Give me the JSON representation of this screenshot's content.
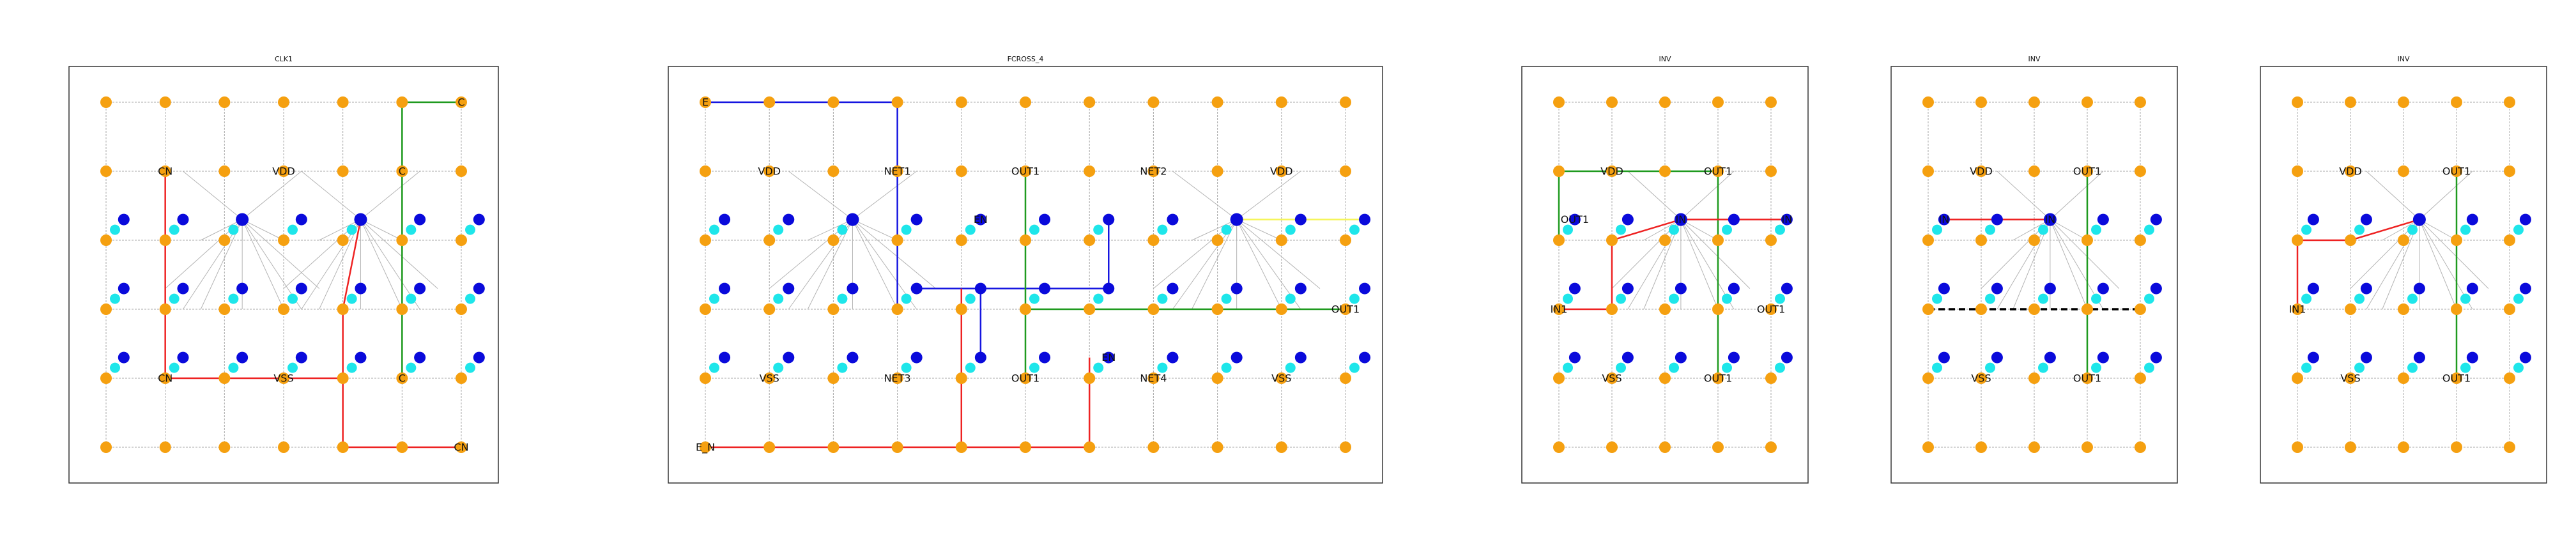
{
  "colors": {
    "grid_node": "#f5a010",
    "pin": "#0a0adb",
    "pin_shadow": "#1ee6ea",
    "red_route": "#ee2222",
    "green_route": "#1f9a1f",
    "blue_route": "#1515e0",
    "yellow_route": "#f5f55a",
    "black_route": "#000000"
  },
  "panels": [
    {
      "title": "CLK1",
      "cols": 7,
      "rows": 6,
      "labels": [
        {
          "c": 6,
          "r": 0,
          "text": "C"
        },
        {
          "c": 1,
          "r": 1,
          "text": "CN"
        },
        {
          "c": 3,
          "r": 1,
          "text": "VDD"
        },
        {
          "c": 5,
          "r": 1,
          "text": "C"
        },
        {
          "c": 1,
          "r": 4,
          "text": "CN"
        },
        {
          "c": 3,
          "r": 4,
          "text": "VSS"
        },
        {
          "c": 5,
          "r": 4,
          "text": "C"
        },
        {
          "c": 6,
          "r": 5,
          "text": "CN"
        }
      ],
      "hubs": [
        {
          "c": 2.3,
          "r": 1.7
        },
        {
          "c": 4.3,
          "r": 1.7
        }
      ],
      "routes": [
        {
          "color": "green",
          "pts": [
            [
              6,
              0
            ],
            [
              5,
              0
            ],
            [
              5,
              4
            ]
          ]
        },
        {
          "color": "red",
          "pts": [
            [
              1,
              1
            ],
            [
              1,
              4
            ],
            [
              4,
              4
            ],
            [
              4,
              5
            ],
            [
              6,
              5
            ]
          ]
        },
        {
          "color": "red",
          "pts": [
            [
              4.3,
              1.7
            ],
            [
              4,
              3
            ],
            [
              4,
              4
            ]
          ]
        }
      ]
    },
    {
      "title": "FCROSS_4",
      "cols": 11,
      "rows": 6,
      "labels": [
        {
          "c": 0,
          "r": 0,
          "text": "E"
        },
        {
          "c": 1,
          "r": 1,
          "text": "VDD"
        },
        {
          "c": 3,
          "r": 1,
          "text": "NET1"
        },
        {
          "c": 5,
          "r": 1,
          "text": "OUT1"
        },
        {
          "c": 7,
          "r": 1,
          "text": "NET2"
        },
        {
          "c": 9,
          "r": 1,
          "text": "VDD"
        },
        {
          "c": 4.3,
          "r": 1.7,
          "text": "EN"
        },
        {
          "c": 10,
          "r": 3,
          "text": "OUT1"
        },
        {
          "c": 1,
          "r": 4,
          "text": "VSS"
        },
        {
          "c": 3,
          "r": 4,
          "text": "NET3"
        },
        {
          "c": 5,
          "r": 4,
          "text": "OUT1"
        },
        {
          "c": 6.3,
          "r": 3.7,
          "text": "EN"
        },
        {
          "c": 7,
          "r": 4,
          "text": "NET4"
        },
        {
          "c": 9,
          "r": 4,
          "text": "VSS"
        },
        {
          "c": 0,
          "r": 5,
          "text": "E_N"
        }
      ],
      "hubs": [
        {
          "c": 2.3,
          "r": 1.7
        },
        {
          "c": 8.3,
          "r": 1.7
        }
      ],
      "routes": [
        {
          "color": "blue",
          "pts": [
            [
              0,
              0
            ],
            [
              3,
              0
            ],
            [
              3,
              3
            ]
          ]
        },
        {
          "color": "blue",
          "pts": [
            [
              3.3,
              2.7
            ],
            [
              6.3,
              2.7
            ],
            [
              6.3,
              1.7
            ]
          ]
        },
        {
          "color": "blue",
          "pts": [
            [
              4.3,
              2.7
            ],
            [
              4.3,
              3.7
            ]
          ]
        },
        {
          "color": "green",
          "pts": [
            [
              5,
              1
            ],
            [
              5,
              4
            ]
          ]
        },
        {
          "color": "green",
          "pts": [
            [
              5,
              3
            ],
            [
              10,
              3
            ]
          ]
        },
        {
          "color": "red",
          "pts": [
            [
              0,
              5
            ],
            [
              4,
              5
            ],
            [
              4,
              2.7
            ]
          ]
        },
        {
          "color": "red",
          "pts": [
            [
              4,
              5
            ],
            [
              6,
              5
            ],
            [
              6,
              3.7
            ]
          ]
        },
        {
          "color": "yellow",
          "pts": [
            [
              8.3,
              1.7
            ],
            [
              10.3,
              1.7
            ]
          ]
        }
      ]
    },
    {
      "title": "INV",
      "cols": 5,
      "rows": 6,
      "labels": [
        {
          "c": 1,
          "r": 1,
          "text": "VDD"
        },
        {
          "c": 3,
          "r": 1,
          "text": "OUT1"
        },
        {
          "c": 0.3,
          "r": 1.7,
          "text": "OUT1"
        },
        {
          "c": 2.3,
          "r": 1.7,
          "text": "IN"
        },
        {
          "c": 4.3,
          "r": 1.7,
          "text": "IN"
        },
        {
          "c": 0,
          "r": 3,
          "text": "IN1"
        },
        {
          "c": 4,
          "r": 3,
          "text": "OUT1"
        },
        {
          "c": 1,
          "r": 4,
          "text": "VSS"
        },
        {
          "c": 3,
          "r": 4,
          "text": "OUT1"
        }
      ],
      "hubs": [
        {
          "c": 2.3,
          "r": 1.7
        }
      ],
      "routes": [
        {
          "color": "green",
          "pts": [
            [
              0,
              2
            ],
            [
              0,
              1
            ],
            [
              3,
              1
            ],
            [
              3,
              4
            ]
          ]
        },
        {
          "color": "red",
          "pts": [
            [
              0,
              3
            ],
            [
              1,
              3
            ],
            [
              1,
              2
            ],
            [
              2.3,
              1.7
            ],
            [
              4.3,
              1.7
            ]
          ]
        }
      ]
    },
    {
      "title": "INV",
      "cols": 5,
      "rows": 6,
      "labels": [
        {
          "c": 1,
          "r": 1,
          "text": "VDD"
        },
        {
          "c": 3,
          "r": 1,
          "text": "OUT1"
        },
        {
          "c": 0.3,
          "r": 1.7,
          "text": "IN"
        },
        {
          "c": 2.3,
          "r": 1.7,
          "text": "IN"
        },
        {
          "c": 1,
          "r": 4,
          "text": "VSS"
        },
        {
          "c": 3,
          "r": 4,
          "text": "OUT1"
        }
      ],
      "hubs": [
        {
          "c": 2.3,
          "r": 1.7
        }
      ],
      "routes": [
        {
          "color": "red",
          "pts": [
            [
              0.3,
              1.7
            ],
            [
              2.3,
              1.7
            ]
          ]
        },
        {
          "color": "green",
          "pts": [
            [
              3,
              1
            ],
            [
              3,
              4
            ]
          ]
        },
        {
          "color": "black",
          "dashed": true,
          "pts": [
            [
              0,
              3
            ],
            [
              4,
              3
            ]
          ]
        }
      ]
    },
    {
      "title": "INV",
      "cols": 5,
      "rows": 6,
      "labels": [
        {
          "c": 1,
          "r": 1,
          "text": "VDD"
        },
        {
          "c": 3,
          "r": 1,
          "text": "OUT1"
        },
        {
          "c": 0,
          "r": 3,
          "text": "IN1"
        },
        {
          "c": 1,
          "r": 4,
          "text": "VSS"
        },
        {
          "c": 3,
          "r": 4,
          "text": "OUT1"
        }
      ],
      "hubs": [
        {
          "c": 2.3,
          "r": 1.7
        }
      ],
      "routes": [
        {
          "color": "red",
          "pts": [
            [
              0,
              3
            ],
            [
              0,
              2
            ],
            [
              1,
              2
            ],
            [
              2.3,
              1.7
            ]
          ]
        },
        {
          "color": "green",
          "pts": [
            [
              3,
              1
            ],
            [
              3,
              4
            ]
          ]
        }
      ]
    }
  ]
}
